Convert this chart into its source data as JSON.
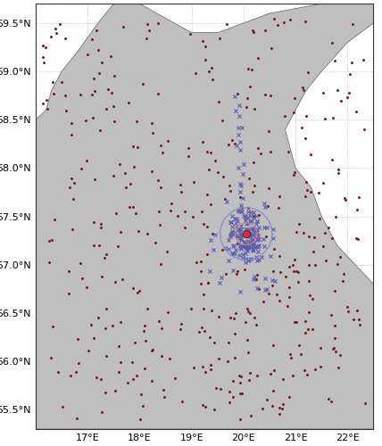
{
  "lon_min": 16.0,
  "lon_max": 22.5,
  "lat_min": 55.3,
  "lat_max": 59.7,
  "by15_lon": 20.05,
  "by15_lat": 57.32,
  "xticks": [
    17,
    18,
    19,
    20,
    21,
    22
  ],
  "yticks": [
    55.5,
    56.0,
    56.5,
    57.0,
    57.5,
    58.0,
    58.5,
    59.0,
    59.5
  ],
  "land_color": "#c0bfbf",
  "ocean_color": "#ffffff",
  "grid_color": "#aaaaaa",
  "ices_color": "#6b1a1a",
  "argo_color": "#5b5baa",
  "by15_marker_color": "#cc3333",
  "by15_circle_color": "#cc8888",
  "km30_circle_color": "#8888cc",
  "coast_edge_color": "#606060",
  "figsize": [
    4.28,
    5.0
  ],
  "dpi": 100
}
